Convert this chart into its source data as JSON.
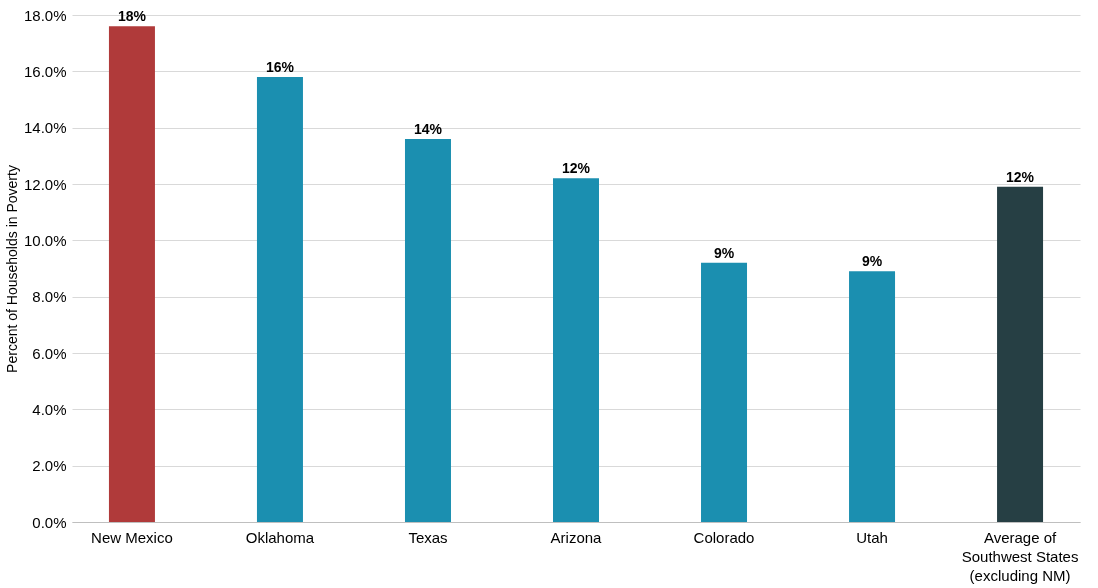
{
  "chart_data": {
    "type": "bar",
    "ylabel": "Percent of Households in Poverty",
    "categories": [
      "New Mexico",
      "Oklahoma",
      "Texas",
      "Arizona",
      "Colorado",
      "Utah",
      "Average of\nSouthwest States\n(excluding NM)"
    ],
    "values": [
      17.6,
      15.8,
      13.6,
      12.2,
      9.2,
      8.9,
      11.9
    ],
    "value_labels": [
      "18%",
      "16%",
      "14%",
      "12%",
      "9%",
      "9%",
      "12%"
    ],
    "colors": [
      "#b03a3a",
      "#1b8fb0",
      "#1b8fb0",
      "#1b8fb0",
      "#1b8fb0",
      "#1b8fb0",
      "#263f44"
    ],
    "ylim": [
      0,
      18
    ],
    "yticks": [
      {
        "value": 0,
        "label": "0.0%"
      },
      {
        "value": 2,
        "label": "2.0%"
      },
      {
        "value": 4,
        "label": "4.0%"
      },
      {
        "value": 6,
        "label": "6.0%"
      },
      {
        "value": 8,
        "label": "8.0%"
      },
      {
        "value": 10,
        "label": "10.0%"
      },
      {
        "value": 12,
        "label": "12.0%"
      },
      {
        "value": 14,
        "label": "14.0%"
      },
      {
        "value": 16,
        "label": "16.0%"
      },
      {
        "value": 18,
        "label": "18.0%"
      }
    ],
    "grid": "y"
  }
}
